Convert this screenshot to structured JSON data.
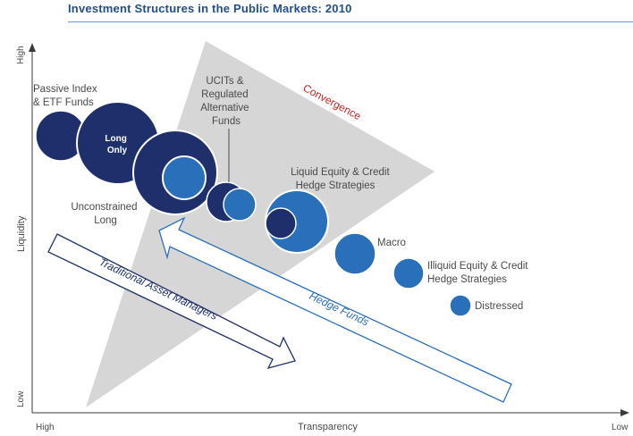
{
  "title": "Investment Structures in the Public Markets: 2010",
  "axes": {
    "y_label": "Liquidity",
    "y_high": "High",
    "y_low": "Low",
    "x_label": "Transparency",
    "x_high": "High",
    "x_low": "Low"
  },
  "labels": {
    "passive_index": [
      "Passive Index",
      "& ETF Funds"
    ],
    "long_only": [
      "Long",
      "Only"
    ],
    "ucits": [
      "UCITs &",
      "Regulated",
      "Alternative",
      "Funds"
    ],
    "convergence": "Convergence",
    "liquid_equity": [
      "Liquid Equity & Credit",
      "Hedge Strategies"
    ],
    "unconstrained": [
      "Unconstrained",
      "Long"
    ],
    "macro": "Macro",
    "illiquid_equity": [
      "Illiquid Equity & Credit",
      "Hedge Strategies"
    ],
    "distressed": "Distressed",
    "traditional": "Traditional Asset Managers",
    "hedge_funds": "Hedge Funds"
  },
  "colors": {
    "dark_navy": "#1f2f6b",
    "mid_blue": "#2a6fba",
    "triangle": "#d6d6d6",
    "title_blue": "#1f4e8c",
    "convergence_red": "#cc2222"
  }
}
